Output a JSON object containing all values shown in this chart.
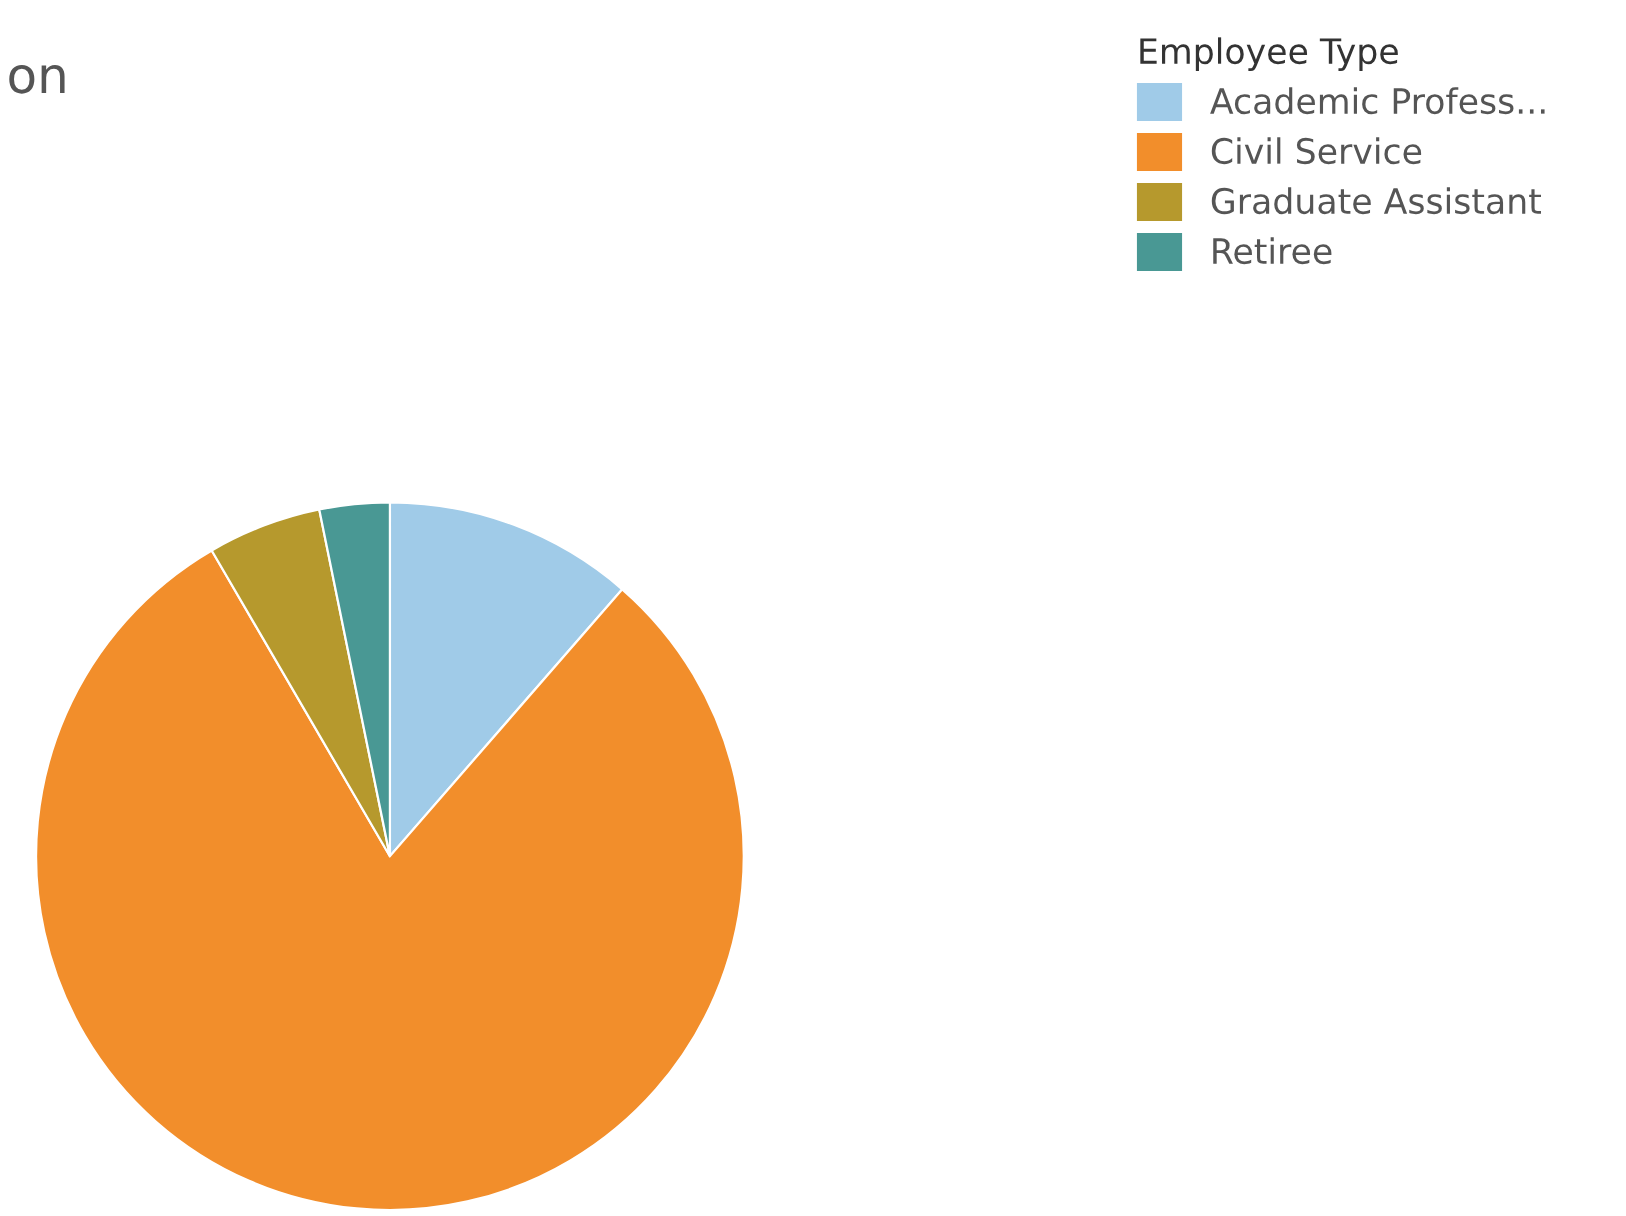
{
  "chart_data": {
    "type": "pie",
    "title": "on",
    "legend_title": "Employee Type",
    "categories": [
      "Academic Profess...",
      "Civil Service",
      "Graduate Assistant",
      "Retiree"
    ],
    "values": [
      11.4,
      80.2,
      5.2,
      3.2
    ],
    "colors": [
      "#a0cbe8",
      "#f28e2b",
      "#b6992d",
      "#499894"
    ],
    "legend": "top right"
  }
}
